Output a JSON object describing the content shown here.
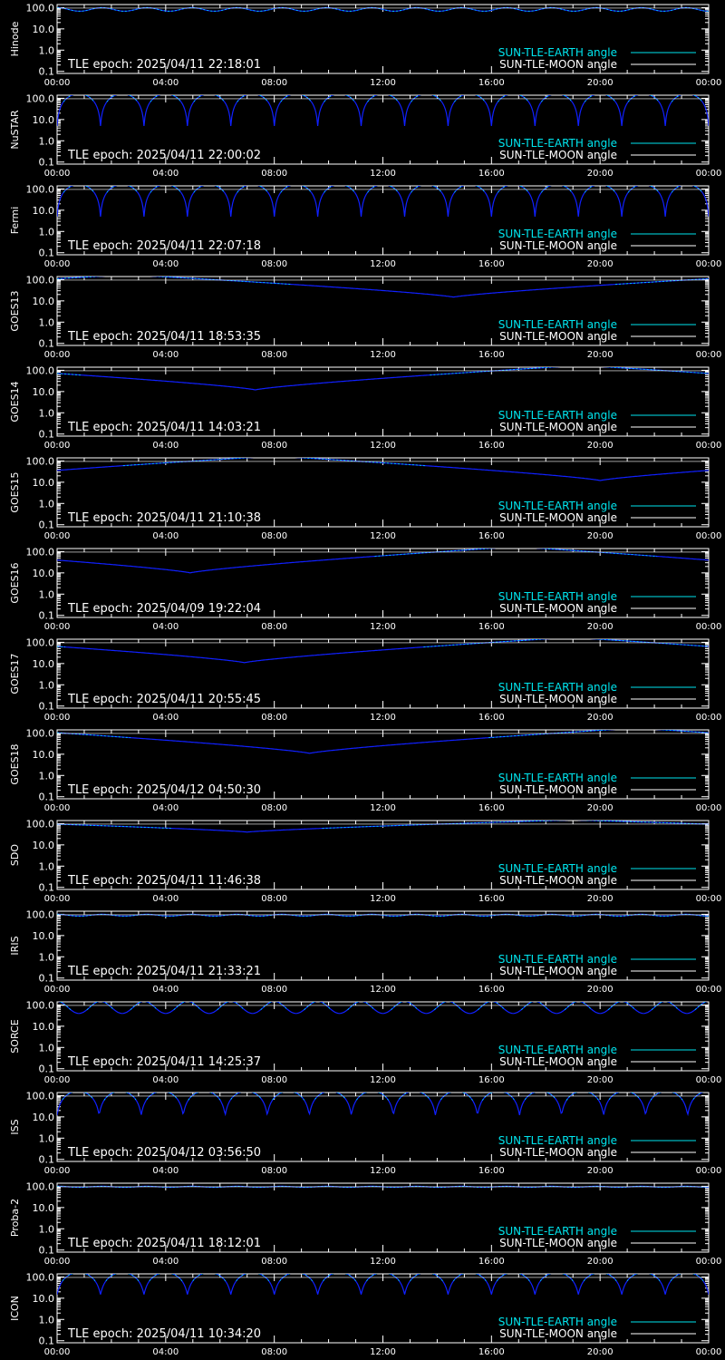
{
  "figure": {
    "colors": {
      "background": "#000000",
      "axes": "#ffffff",
      "sun_earth": "#00e5ee",
      "sun_moon": "#ffffff",
      "curve_fill": "#1020ff"
    },
    "legend": {
      "sun_earth_label": "SUN-TLE-EARTH angle",
      "sun_moon_label": "SUN-TLE-MOON angle"
    },
    "epoch_prefix": "TLE epoch: "
  },
  "chart_data": [
    {
      "type": "line",
      "ylabel": "Hinode",
      "epoch": "2025/04/11 22:18:01",
      "x_ticks": [
        "00:00",
        "04:00",
        "08:00",
        "12:00",
        "16:00",
        "20:00",
        "00:00"
      ],
      "y_ticks": [
        "100.0",
        "10.0",
        "1.0",
        "0.1"
      ],
      "y_scale": "log",
      "ylim": [
        0.08,
        140
      ],
      "series": [
        {
          "name": "SUN-TLE-EARTH angle",
          "shape": "oscillation",
          "cycles": 14.5,
          "max": 100,
          "min": 68
        },
        {
          "name": "SUN-TLE-MOON angle",
          "shape": "flat",
          "value": 95
        }
      ]
    },
    {
      "type": "line",
      "ylabel": "NuSTAR",
      "epoch": "2025/04/11 22:00:02",
      "x_ticks": [
        "00:00",
        "04:00",
        "08:00",
        "12:00",
        "16:00",
        "20:00",
        "00:00"
      ],
      "y_ticks": [
        "100.0",
        "10.0",
        "1.0",
        "0.1"
      ],
      "y_scale": "log",
      "ylim": [
        0.08,
        140
      ],
      "series": [
        {
          "name": "SUN-TLE-EARTH angle",
          "shape": "arches",
          "cycles": 15,
          "max": 160,
          "min": 5
        },
        {
          "name": "SUN-TLE-MOON angle",
          "shape": "flat",
          "value": 95
        }
      ]
    },
    {
      "type": "line",
      "ylabel": "Fermi",
      "epoch": "2025/04/11 22:07:18",
      "x_ticks": [
        "00:00",
        "04:00",
        "08:00",
        "12:00",
        "16:00",
        "20:00",
        "00:00"
      ],
      "y_ticks": [
        "100.0",
        "10.0",
        "1.0",
        "0.1"
      ],
      "y_scale": "log",
      "ylim": [
        0.08,
        140
      ],
      "series": [
        {
          "name": "SUN-TLE-EARTH angle",
          "shape": "arches",
          "cycles": 15,
          "max": 160,
          "min": 5
        },
        {
          "name": "SUN-TLE-MOON angle",
          "shape": "flat",
          "value": 95
        }
      ]
    },
    {
      "type": "line",
      "ylabel": "GOES13",
      "epoch": "2025/04/11 18:53:35",
      "x_ticks": [
        "00:00",
        "04:00",
        "08:00",
        "12:00",
        "16:00",
        "20:00",
        "00:00"
      ],
      "y_ticks": [
        "100.0",
        "10.0",
        "1.0",
        "0.1"
      ],
      "y_scale": "log",
      "ylim": [
        0.08,
        140
      ],
      "series": [
        {
          "name": "SUN-TLE-EARTH angle",
          "shape": "dip",
          "dip_time": 14.6,
          "max": 170,
          "min": 15
        },
        {
          "name": "SUN-TLE-MOON angle",
          "shape": "flat",
          "value": 95
        }
      ]
    },
    {
      "type": "line",
      "ylabel": "GOES14",
      "epoch": "2025/04/11 14:03:21",
      "x_ticks": [
        "00:00",
        "04:00",
        "08:00",
        "12:00",
        "16:00",
        "20:00",
        "00:00"
      ],
      "y_ticks": [
        "100.0",
        "10.0",
        "1.0",
        "0.1"
      ],
      "y_scale": "log",
      "ylim": [
        0.08,
        140
      ],
      "series": [
        {
          "name": "SUN-TLE-EARTH angle",
          "shape": "dip",
          "dip_time": 7.3,
          "max": 170,
          "min": 12
        },
        {
          "name": "SUN-TLE-MOON angle",
          "shape": "flat",
          "value": 95
        }
      ]
    },
    {
      "type": "line",
      "ylabel": "GOES15",
      "epoch": "2025/04/11 21:10:38",
      "x_ticks": [
        "00:00",
        "04:00",
        "08:00",
        "12:00",
        "16:00",
        "20:00",
        "00:00"
      ],
      "y_ticks": [
        "100.0",
        "10.0",
        "1.0",
        "0.1"
      ],
      "y_scale": "log",
      "ylim": [
        0.08,
        140
      ],
      "series": [
        {
          "name": "SUN-TLE-EARTH angle",
          "shape": "dip",
          "dip_time": 20.0,
          "max": 170,
          "min": 12
        },
        {
          "name": "SUN-TLE-MOON angle",
          "shape": "flat",
          "value": 95
        }
      ]
    },
    {
      "type": "line",
      "ylabel": "GOES16",
      "epoch": "2025/04/09 19:22:04",
      "x_ticks": [
        "00:00",
        "04:00",
        "08:00",
        "12:00",
        "16:00",
        "20:00",
        "00:00"
      ],
      "y_ticks": [
        "100.0",
        "10.0",
        "1.0",
        "0.1"
      ],
      "y_scale": "log",
      "ylim": [
        0.08,
        140
      ],
      "series": [
        {
          "name": "SUN-TLE-EARTH angle",
          "shape": "dip",
          "dip_time": 4.9,
          "max": 170,
          "min": 10
        },
        {
          "name": "SUN-TLE-MOON angle",
          "shape": "flat",
          "value": 95
        }
      ]
    },
    {
      "type": "line",
      "ylabel": "GOES17",
      "epoch": "2025/04/11 20:55:45",
      "x_ticks": [
        "00:00",
        "04:00",
        "08:00",
        "12:00",
        "16:00",
        "20:00",
        "00:00"
      ],
      "y_ticks": [
        "100.0",
        "10.0",
        "1.0",
        "0.1"
      ],
      "y_scale": "log",
      "ylim": [
        0.08,
        140
      ],
      "series": [
        {
          "name": "SUN-TLE-EARTH angle",
          "shape": "dip",
          "dip_time": 6.9,
          "max": 170,
          "min": 11
        },
        {
          "name": "SUN-TLE-MOON angle",
          "shape": "flat",
          "value": 95
        }
      ]
    },
    {
      "type": "line",
      "ylabel": "GOES18",
      "epoch": "2025/04/12 04:50:30",
      "x_ticks": [
        "00:00",
        "04:00",
        "08:00",
        "12:00",
        "16:00",
        "20:00",
        "00:00"
      ],
      "y_ticks": [
        "100.0",
        "10.0",
        "1.0",
        "0.1"
      ],
      "y_scale": "log",
      "ylim": [
        0.08,
        140
      ],
      "series": [
        {
          "name": "SUN-TLE-EARTH angle",
          "shape": "dip",
          "dip_time": 9.3,
          "max": 170,
          "min": 11
        },
        {
          "name": "SUN-TLE-MOON angle",
          "shape": "flat",
          "value": 95
        }
      ]
    },
    {
      "type": "line",
      "ylabel": "SDO",
      "epoch": "2025/04/11 11:46:38",
      "x_ticks": [
        "00:00",
        "04:00",
        "08:00",
        "12:00",
        "16:00",
        "20:00",
        "00:00"
      ],
      "y_ticks": [
        "100.0",
        "10.0",
        "1.0",
        "0.1"
      ],
      "y_scale": "log",
      "ylim": [
        0.08,
        140
      ],
      "series": [
        {
          "name": "SUN-TLE-EARTH angle",
          "shape": "dip",
          "dip_time": 7.0,
          "max": 150,
          "min": 40
        },
        {
          "name": "SUN-TLE-MOON angle",
          "shape": "flat",
          "value": 95
        }
      ]
    },
    {
      "type": "line",
      "ylabel": "IRIS",
      "epoch": "2025/04/11 21:33:21",
      "x_ticks": [
        "00:00",
        "04:00",
        "08:00",
        "12:00",
        "16:00",
        "20:00",
        "00:00"
      ],
      "y_ticks": [
        "100.0",
        "10.0",
        "1.0",
        "0.1"
      ],
      "y_scale": "log",
      "ylim": [
        0.08,
        140
      ],
      "series": [
        {
          "name": "SUN-TLE-EARTH angle",
          "shape": "oscillation",
          "cycles": 14.5,
          "max": 100,
          "min": 82
        },
        {
          "name": "SUN-TLE-MOON angle",
          "shape": "flat",
          "value": 95
        }
      ]
    },
    {
      "type": "line",
      "ylabel": "SORCE",
      "epoch": "2025/04/11 14:25:37",
      "x_ticks": [
        "00:00",
        "04:00",
        "08:00",
        "12:00",
        "16:00",
        "20:00",
        "00:00"
      ],
      "y_ticks": [
        "100.0",
        "10.0",
        "1.0",
        "0.1"
      ],
      "y_scale": "log",
      "ylim": [
        0.08,
        140
      ],
      "series": [
        {
          "name": "SUN-TLE-EARTH angle",
          "shape": "oscillation",
          "cycles": 15,
          "max": 150,
          "min": 40
        },
        {
          "name": "SUN-TLE-MOON angle",
          "shape": "flat",
          "value": 95
        }
      ]
    },
    {
      "type": "line",
      "ylabel": "ISS",
      "epoch": "2025/04/12 03:56:50",
      "x_ticks": [
        "00:00",
        "04:00",
        "08:00",
        "12:00",
        "16:00",
        "20:00",
        "00:00"
      ],
      "y_ticks": [
        "100.0",
        "10.0",
        "1.0",
        "0.1"
      ],
      "y_scale": "log",
      "ylim": [
        0.08,
        140
      ],
      "series": [
        {
          "name": "SUN-TLE-EARTH angle",
          "shape": "arches",
          "cycles": 15.5,
          "max": 160,
          "min": 12
        },
        {
          "name": "SUN-TLE-MOON angle",
          "shape": "flat",
          "value": 95
        }
      ]
    },
    {
      "type": "line",
      "ylabel": "Proba-2",
      "epoch": "2025/04/11 18:12:01",
      "x_ticks": [
        "00:00",
        "04:00",
        "08:00",
        "12:00",
        "16:00",
        "20:00",
        "00:00"
      ],
      "y_ticks": [
        "100.0",
        "10.0",
        "1.0",
        "0.1"
      ],
      "y_scale": "log",
      "ylim": [
        0.08,
        140
      ],
      "series": [
        {
          "name": "SUN-TLE-EARTH angle",
          "shape": "oscillation",
          "cycles": 14.5,
          "max": 100,
          "min": 90
        },
        {
          "name": "SUN-TLE-MOON angle",
          "shape": "flat",
          "value": 95
        }
      ]
    },
    {
      "type": "line",
      "ylabel": "ICON",
      "epoch": "2025/04/11 10:34:20",
      "x_ticks": [
        "00:00",
        "04:00",
        "08:00",
        "12:00",
        "16:00",
        "20:00",
        "00:00"
      ],
      "y_ticks": [
        "100.0",
        "10.0",
        "1.0",
        "0.1"
      ],
      "y_scale": "log",
      "ylim": [
        0.08,
        140
      ],
      "series": [
        {
          "name": "SUN-TLE-EARTH angle",
          "shape": "arches",
          "cycles": 15,
          "max": 160,
          "min": 15
        },
        {
          "name": "SUN-TLE-MOON angle",
          "shape": "flat",
          "value": 95
        }
      ]
    }
  ]
}
